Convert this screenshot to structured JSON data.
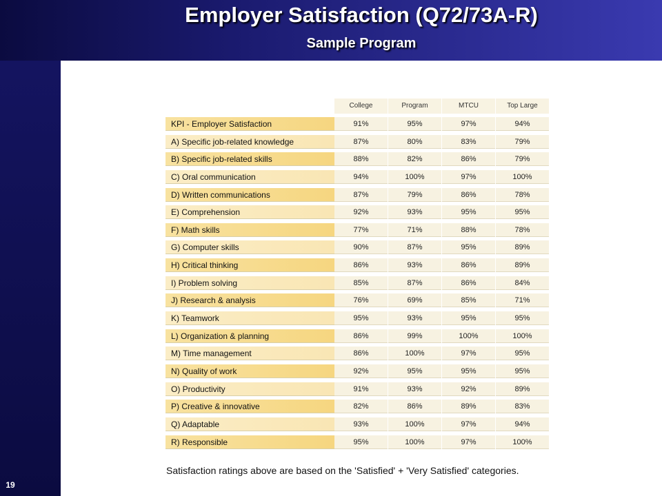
{
  "slide": {
    "title": "Employer Satisfaction (Q72/73A-R)",
    "subtitle": "Sample Program",
    "number": "19"
  },
  "colors": {
    "banner": "#1a1a6e",
    "label_dark": "#f6d680",
    "label_light": "#f9e6b4",
    "cell_bg": "#f7f2e1"
  },
  "table": {
    "columns": [
      "College",
      "Program",
      "MTCU",
      "Top Large"
    ],
    "rows": [
      {
        "label": "KPI - Employer Satisfaction",
        "values": [
          "91%",
          "95%",
          "97%",
          "94%"
        ]
      },
      {
        "label": "A) Specific job-related knowledge",
        "values": [
          "87%",
          "80%",
          "83%",
          "79%"
        ]
      },
      {
        "label": "B) Specific job-related skills",
        "values": [
          "88%",
          "82%",
          "86%",
          "79%"
        ]
      },
      {
        "label": "C) Oral communication",
        "values": [
          "94%",
          "100%",
          "97%",
          "100%"
        ]
      },
      {
        "label": "D) Written communications",
        "values": [
          "87%",
          "79%",
          "86%",
          "78%"
        ]
      },
      {
        "label": "E) Comprehension",
        "values": [
          "92%",
          "93%",
          "95%",
          "95%"
        ]
      },
      {
        "label": "F) Math skills",
        "values": [
          "77%",
          "71%",
          "88%",
          "78%"
        ]
      },
      {
        "label": "G) Computer skills",
        "values": [
          "90%",
          "87%",
          "95%",
          "89%"
        ]
      },
      {
        "label": "H) Critical thinking",
        "values": [
          "86%",
          "93%",
          "86%",
          "89%"
        ]
      },
      {
        "label": "I) Problem solving",
        "values": [
          "85%",
          "87%",
          "86%",
          "84%"
        ]
      },
      {
        "label": "J) Research & analysis",
        "values": [
          "76%",
          "69%",
          "85%",
          "71%"
        ]
      },
      {
        "label": "K) Teamwork",
        "values": [
          "95%",
          "93%",
          "95%",
          "95%"
        ]
      },
      {
        "label": "L) Organization & planning",
        "values": [
          "86%",
          "99%",
          "100%",
          "100%"
        ]
      },
      {
        "label": "M) Time management",
        "values": [
          "86%",
          "100%",
          "97%",
          "95%"
        ]
      },
      {
        "label": "N) Quality of work",
        "values": [
          "92%",
          "95%",
          "95%",
          "95%"
        ]
      },
      {
        "label": "O) Productivity",
        "values": [
          "91%",
          "93%",
          "92%",
          "89%"
        ]
      },
      {
        "label": "P) Creative & innovative",
        "values": [
          "82%",
          "86%",
          "89%",
          "83%"
        ]
      },
      {
        "label": "Q) Adaptable",
        "values": [
          "93%",
          "100%",
          "97%",
          "94%"
        ]
      },
      {
        "label": "R) Responsible",
        "values": [
          "95%",
          "100%",
          "97%",
          "100%"
        ]
      }
    ]
  },
  "footnote": "Satisfaction ratings above are based on the 'Satisfied' + 'Very Satisfied' categories."
}
